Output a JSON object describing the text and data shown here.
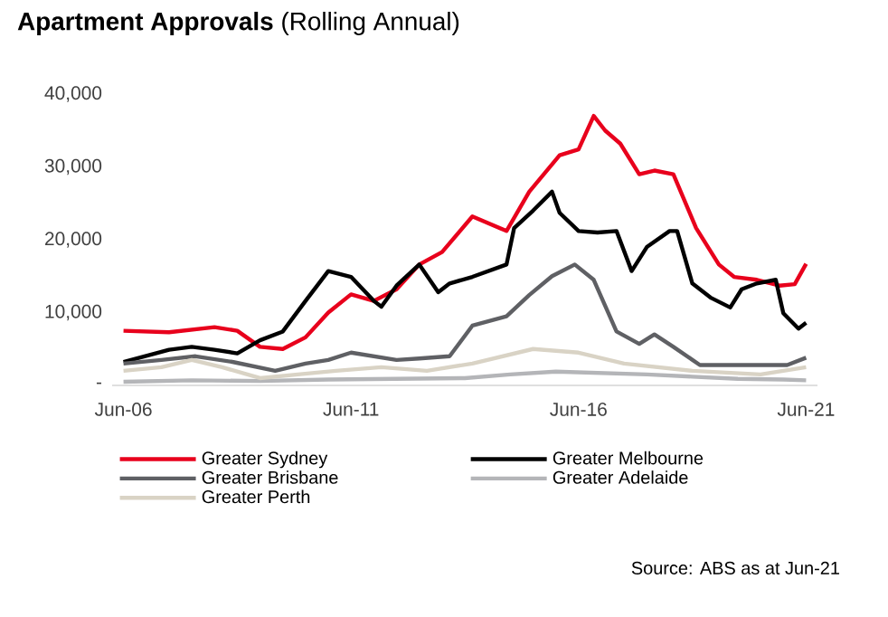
{
  "chart_data": {
    "type": "line",
    "title": "**Apartment Approvals** (Rolling Annual)",
    "xlim": [
      "2006-03",
      "2021-09"
    ],
    "ylim": [
      0,
      40000
    ],
    "xticks": [
      {
        "value": "2006-06",
        "label": "Jun-06"
      },
      {
        "value": "2011-06",
        "label": "Jun-11"
      },
      {
        "value": "2016-06",
        "label": "Jun-16"
      },
      {
        "value": "2021-06",
        "label": "Jun-21"
      }
    ],
    "yticks": [
      {
        "value": 0,
        "label": "-"
      },
      {
        "value": 10000,
        "label": "10,000"
      },
      {
        "value": 20000,
        "label": "20,000"
      },
      {
        "value": 30000,
        "label": "30,000"
      },
      {
        "value": 40000,
        "label": "40,000"
      }
    ],
    "grid": false,
    "legend": "bottom",
    "marker": "none",
    "line_style": "solid",
    "series": [
      {
        "name": "Greater Sydney",
        "color": "#e8001c",
        "x": [
          "2006-06",
          "2007-06",
          "2008-06",
          "2008-12",
          "2009-06",
          "2009-12",
          "2010-06",
          "2010-12",
          "2011-06",
          "2011-12",
          "2012-06",
          "2012-12",
          "2013-06",
          "2014-02",
          "2014-11",
          "2015-05",
          "2016-01",
          "2016-06",
          "2016-10",
          "2017-01",
          "2017-05",
          "2017-10",
          "2018-02",
          "2018-07",
          "2019-01",
          "2019-07",
          "2019-11",
          "2020-05",
          "2020-11",
          "2021-03",
          "2021-06"
        ],
        "values": [
          7500,
          7300,
          8000,
          7500,
          5300,
          5000,
          6600,
          10000,
          12500,
          11600,
          13200,
          16600,
          18300,
          23200,
          21200,
          26600,
          31600,
          32400,
          37000,
          35000,
          33200,
          29000,
          29500,
          29000,
          21600,
          16600,
          14900,
          14500,
          13700,
          13900,
          16700
        ]
      },
      {
        "name": "Greater Melbourne",
        "color": "#000000",
        "x": [
          "2006-06",
          "2007-06",
          "2007-12",
          "2008-06",
          "2008-12",
          "2009-06",
          "2009-12",
          "2010-06",
          "2010-12",
          "2011-06",
          "2011-12",
          "2012-02",
          "2012-06",
          "2012-12",
          "2013-05",
          "2013-08",
          "2014-02",
          "2014-11",
          "2015-01",
          "2015-06",
          "2015-11",
          "2016-01",
          "2016-06",
          "2016-11",
          "2017-04",
          "2017-08",
          "2017-12",
          "2018-06",
          "2018-08",
          "2018-12",
          "2019-05",
          "2019-10",
          "2020-01",
          "2020-05",
          "2020-10",
          "2020-12",
          "2021-04",
          "2021-06"
        ],
        "values": [
          3200,
          4900,
          5300,
          4900,
          4400,
          6200,
          7400,
          11600,
          15700,
          14900,
          11600,
          10800,
          13700,
          16600,
          12800,
          14000,
          14900,
          16600,
          21600,
          24000,
          26600,
          23700,
          21200,
          21000,
          21200,
          15700,
          19000,
          21200,
          21200,
          14000,
          12000,
          10700,
          13200,
          14000,
          14500,
          9900,
          7800,
          8600
        ]
      },
      {
        "name": "Greater Brisbane",
        "color": "#5f6064",
        "x": [
          "2006-06",
          "2007-04",
          "2008-01",
          "2008-11",
          "2009-10",
          "2010-06",
          "2010-12",
          "2011-06",
          "2012-06",
          "2012-12",
          "2013-08",
          "2014-02",
          "2014-11",
          "2015-05",
          "2015-11",
          "2016-05",
          "2016-10",
          "2017-04",
          "2017-10",
          "2018-02",
          "2018-07",
          "2019-02",
          "2020-04",
          "2021-01",
          "2021-06"
        ],
        "values": [
          3000,
          3500,
          4000,
          3200,
          2000,
          3000,
          3500,
          4500,
          3500,
          3700,
          4000,
          8200,
          9500,
          12400,
          15000,
          16600,
          14500,
          7400,
          5700,
          7000,
          5300,
          2800,
          2800,
          2800,
          3800
        ]
      },
      {
        "name": "Greater Adelaide",
        "color": "#b4b5b8",
        "x": [
          "2006-06",
          "2007-12",
          "2009-06",
          "2010-12",
          "2012-06",
          "2013-12",
          "2014-12",
          "2015-12",
          "2016-12",
          "2017-12",
          "2018-12",
          "2019-12",
          "2020-12",
          "2021-06"
        ],
        "values": [
          500,
          700,
          600,
          800,
          900,
          1000,
          1500,
          1900,
          1700,
          1500,
          1200,
          900,
          800,
          700
        ]
      },
      {
        "name": "Greater Perth",
        "color": "#d9d3c5",
        "x": [
          "2006-06",
          "2007-04",
          "2007-12",
          "2008-08",
          "2009-06",
          "2010-04",
          "2011-02",
          "2012-02",
          "2013-02",
          "2014-02",
          "2015-06",
          "2016-06",
          "2017-06",
          "2018-12",
          "2020-06",
          "2021-06"
        ],
        "values": [
          2000,
          2500,
          3500,
          2500,
          1000,
          1500,
          2000,
          2500,
          2000,
          3000,
          5000,
          4500,
          3000,
          2000,
          1500,
          2500
        ]
      }
    ],
    "annotations": [
      "Source: ABS as at Jun-21"
    ]
  }
}
